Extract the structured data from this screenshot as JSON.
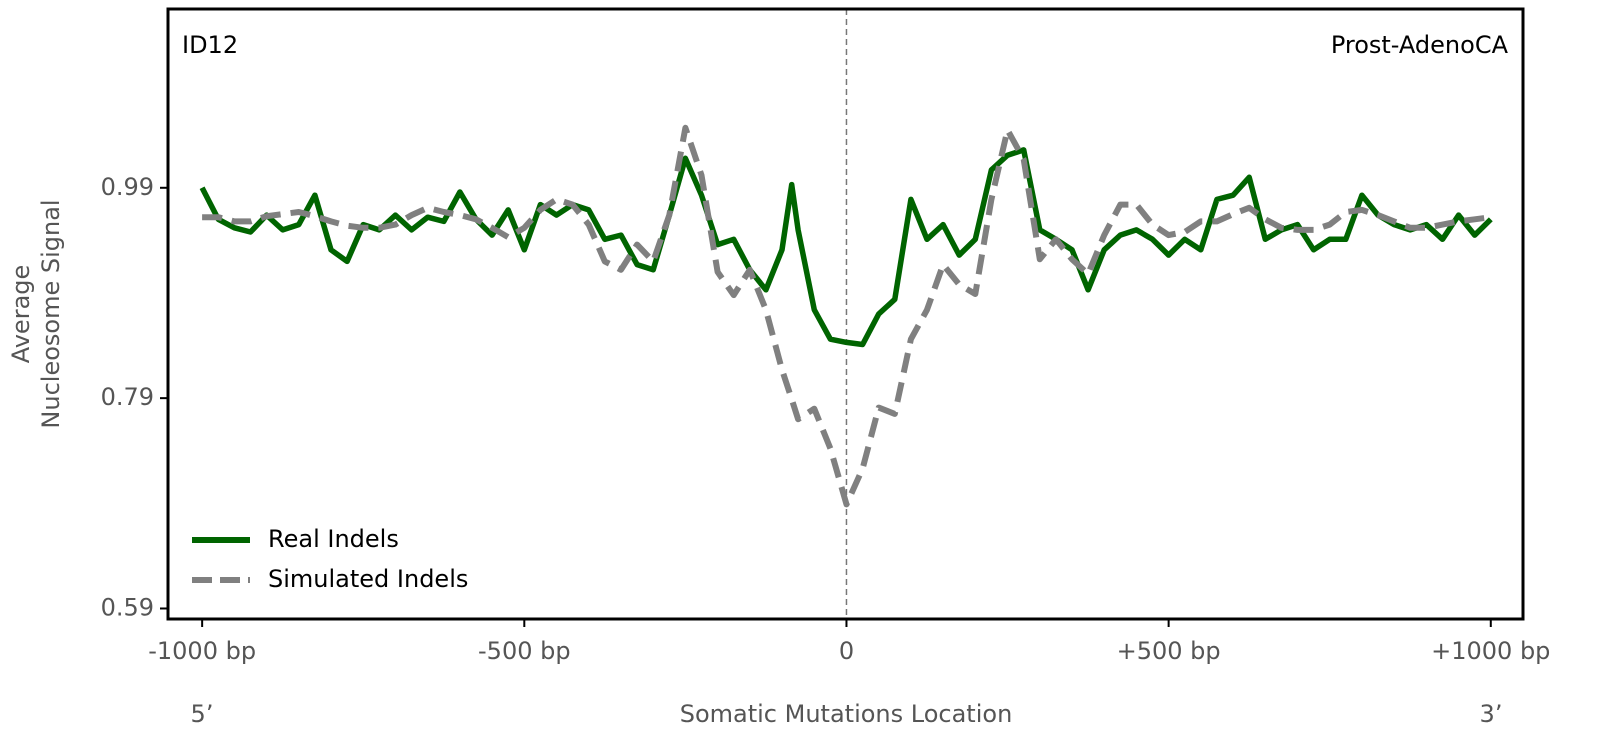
{
  "chart_data": {
    "type": "line",
    "xlabel": "Somatic Mutations Location",
    "ylabel_lines": [
      "Average",
      "Nucleosome Signal"
    ],
    "annotations": {
      "signature": "ID12",
      "cancer_type": "Prost-AdenoCA",
      "five_prime": "5’",
      "three_prime": "3’"
    },
    "xlim": [
      -1053,
      1050
    ],
    "ylim": [
      0.58,
      1.16
    ],
    "xticks": [
      {
        "value": -1000,
        "label": "-1000 bp"
      },
      {
        "value": -500,
        "label": "-500 bp"
      },
      0,
      {
        "value": 500,
        "label": "+500 bp"
      },
      {
        "value": 1000,
        "label": "+1000 bp"
      }
    ],
    "yticks": [
      0.59,
      0.79,
      0.99
    ],
    "legend": "lower left",
    "x": [
      -1000,
      -975,
      -950,
      -925,
      -900,
      -875,
      -850,
      -825,
      -800,
      -775,
      -750,
      -725,
      -700,
      -675,
      -650,
      -625,
      -600,
      -575,
      -550,
      -525,
      -500,
      -475,
      -450,
      -425,
      -400,
      -375,
      -350,
      -325,
      -300,
      -275,
      -250,
      -225,
      -200,
      -175,
      -150,
      -125,
      -100,
      -85,
      -75,
      -50,
      -25,
      0,
      25,
      50,
      75,
      100,
      125,
      150,
      175,
      200,
      225,
      250,
      275,
      300,
      325,
      350,
      375,
      400,
      425,
      450,
      475,
      500,
      525,
      550,
      575,
      600,
      625,
      650,
      675,
      700,
      725,
      750,
      775,
      800,
      825,
      850,
      875,
      900,
      925,
      950,
      975,
      1000
    ],
    "series": [
      {
        "name": "Real Indels",
        "color": "#006400",
        "dash": false,
        "values": [
          0.99,
          0.96,
          0.952,
          0.948,
          0.964,
          0.95,
          0.955,
          0.983,
          0.931,
          0.92,
          0.955,
          0.95,
          0.964,
          0.95,
          0.962,
          0.958,
          0.986,
          0.96,
          0.945,
          0.969,
          0.931,
          0.974,
          0.964,
          0.974,
          0.969,
          0.941,
          0.945,
          0.917,
          0.912,
          0.964,
          1.018,
          0.983,
          0.936,
          0.941,
          0.912,
          0.893,
          0.931,
          0.993,
          0.95,
          0.874,
          0.846,
          0.843,
          0.841,
          0.87,
          0.884,
          0.979,
          0.941,
          0.955,
          0.926,
          0.941,
          1.007,
          1.021,
          1.026,
          0.95,
          0.941,
          0.931,
          0.893,
          0.931,
          0.945,
          0.95,
          0.941,
          0.926,
          0.941,
          0.931,
          0.979,
          0.983,
          1.0,
          0.941,
          0.95,
          0.955,
          0.931,
          0.941,
          0.941,
          0.983,
          0.964,
          0.955,
          0.95,
          0.955,
          0.941,
          0.964,
          0.945,
          0.96
        ]
      },
      {
        "name": "Simulated Indels",
        "color": "#808080",
        "dash": true,
        "values": [
          0.962,
          0.962,
          0.958,
          0.958,
          0.963,
          0.965,
          0.967,
          0.963,
          0.958,
          0.954,
          0.952,
          0.952,
          0.955,
          0.964,
          0.971,
          0.967,
          0.964,
          0.96,
          0.952,
          0.943,
          0.952,
          0.969,
          0.979,
          0.974,
          0.955,
          0.92,
          0.912,
          0.936,
          0.92,
          0.964,
          1.047,
          1.002,
          0.91,
          0.888,
          0.912,
          0.874,
          0.817,
          0.789,
          0.77,
          0.78,
          0.742,
          0.689,
          0.723,
          0.781,
          0.775,
          0.846,
          0.874,
          0.917,
          0.898,
          0.889,
          0.979,
          1.045,
          1.017,
          0.922,
          0.941,
          0.922,
          0.908,
          0.945,
          0.974,
          0.974,
          0.955,
          0.945,
          0.948,
          0.958,
          0.958,
          0.965,
          0.971,
          0.96,
          0.952,
          0.95,
          0.95,
          0.955,
          0.967,
          0.969,
          0.964,
          0.958,
          0.952,
          0.952,
          0.955,
          0.958,
          0.96,
          0.962
        ]
      }
    ]
  }
}
